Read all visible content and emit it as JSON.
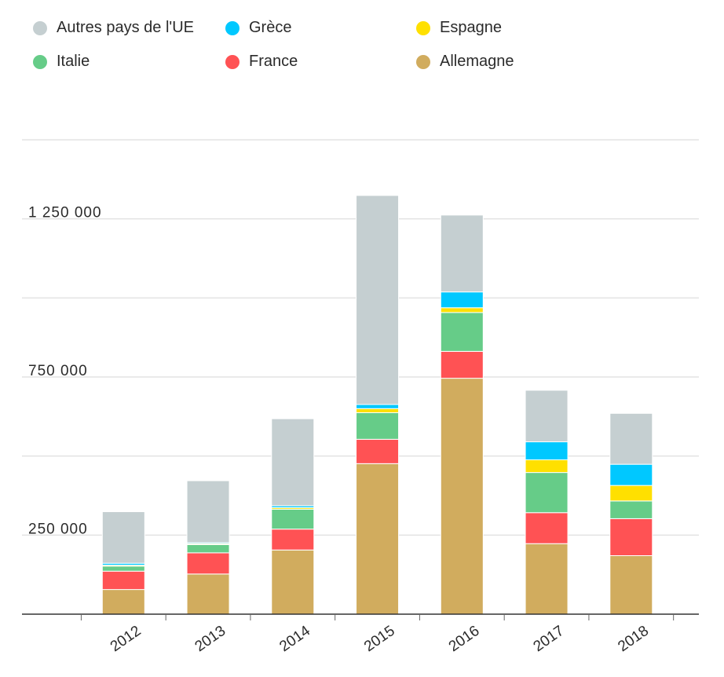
{
  "chart_data": {
    "type": "bar",
    "stacked": true,
    "categories": [
      "2012",
      "2013",
      "2014",
      "2015",
      "2016",
      "2017",
      "2018"
    ],
    "series": [
      {
        "name": "Allemagne",
        "color": "#d1ac5e",
        "values": [
          78000,
          127000,
          203000,
          476000,
          746000,
          223000,
          185000
        ]
      },
      {
        "name": "France",
        "color": "#ff5254",
        "values": [
          58000,
          67000,
          66000,
          77000,
          85000,
          98000,
          117000
        ]
      },
      {
        "name": "Italie",
        "color": "#66cc88",
        "values": [
          16000,
          26000,
          63000,
          84000,
          123000,
          127000,
          56000
        ]
      },
      {
        "name": "Espagne",
        "color": "#ffe000",
        "values": [
          3000,
          3000,
          5000,
          13000,
          15000,
          40000,
          49000
        ]
      },
      {
        "name": "Grèce",
        "color": "#00c8ff",
        "values": [
          6000,
          3000,
          6000,
          13000,
          50000,
          57000,
          67000
        ]
      },
      {
        "name": "Autres pays de l'UE",
        "color": "#c5cfd1",
        "values": [
          163000,
          196000,
          275000,
          661000,
          243000,
          163000,
          161000
        ]
      }
    ],
    "title": "",
    "xlabel": "",
    "ylabel": "",
    "ylim": [
      0,
      1500000
    ],
    "y_gridlines": [
      250000,
      500000,
      750000,
      1000000,
      1250000,
      1500000
    ],
    "y_tick_labels": [
      {
        "value": 250000,
        "label": "250 000"
      },
      {
        "value": 750000,
        "label": "750 000"
      },
      {
        "value": 1250000,
        "label": "1 250 000"
      }
    ],
    "legend": {
      "position": "top",
      "order": [
        "Autres pays de l'UE",
        "Grèce",
        "Espagne",
        "Italie",
        "France",
        "Allemagne"
      ]
    }
  }
}
